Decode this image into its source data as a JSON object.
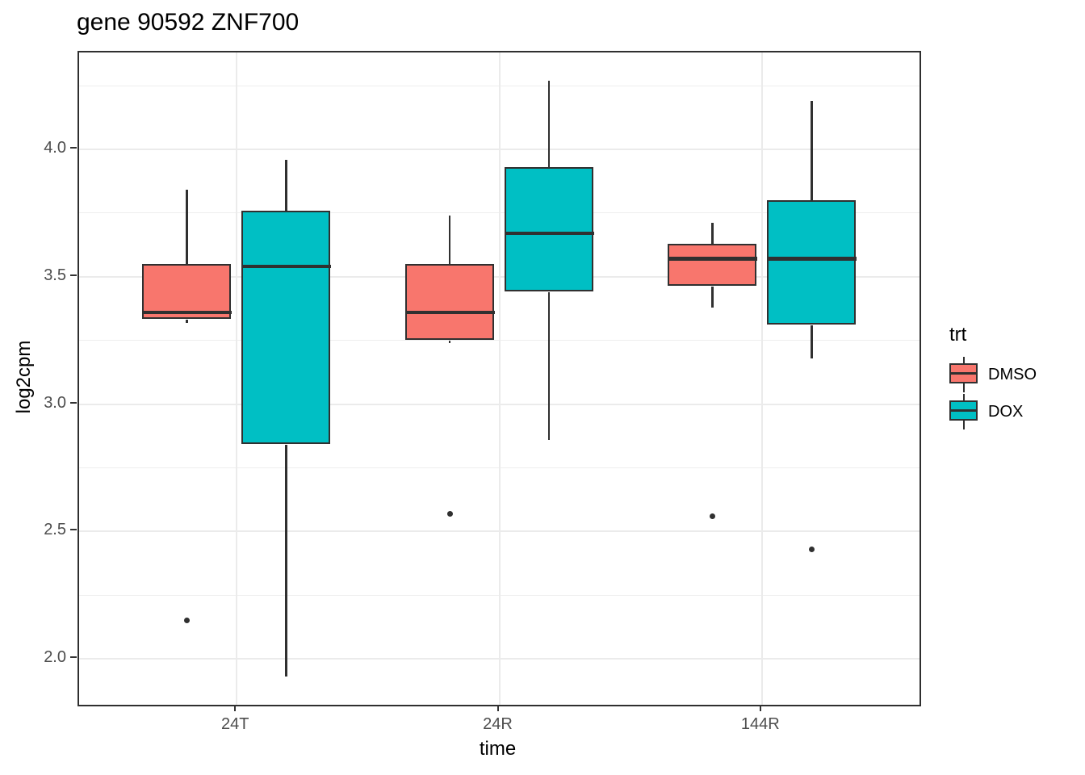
{
  "title": "gene 90592 ZNF700",
  "chart_data": {
    "type": "boxplot",
    "title": "gene 90592 ZNF700",
    "xlabel": "time",
    "ylabel": "log2cpm",
    "legend_title": "trt",
    "legend_position": "right",
    "grid": true,
    "categories": [
      "24T",
      "24R",
      "144R"
    ],
    "y_axis": {
      "range": [
        1.82,
        4.38
      ],
      "tick_values": [
        4.0,
        3.5,
        3.0,
        2.5,
        2.0
      ],
      "tick_labels": [
        "4.0",
        "3.5",
        "3.0",
        "2.5",
        "2.0"
      ],
      "minor_tick_values": [
        4.25,
        3.75,
        3.25,
        2.75,
        2.25
      ]
    },
    "series": [
      {
        "name": "DMSO",
        "color": "#F8766D",
        "boxes": [
          {
            "category": "24T",
            "whisker_low": 3.32,
            "q1": 3.33,
            "median": 3.36,
            "q3": 3.55,
            "whisker_high": 3.84,
            "outliers": [
              2.15
            ]
          },
          {
            "category": "24R",
            "whisker_low": 3.24,
            "q1": 3.25,
            "median": 3.36,
            "q3": 3.55,
            "whisker_high": 3.74,
            "outliers": [
              2.57
            ]
          },
          {
            "category": "144R",
            "whisker_low": 3.38,
            "q1": 3.46,
            "median": 3.57,
            "q3": 3.63,
            "whisker_high": 3.71,
            "outliers": [
              2.56
            ]
          }
        ]
      },
      {
        "name": "DOX",
        "color": "#00BFC4",
        "boxes": [
          {
            "category": "24T",
            "whisker_low": 1.93,
            "q1": 2.84,
            "median": 3.54,
            "q3": 3.76,
            "whisker_high": 3.96,
            "outliers": []
          },
          {
            "category": "24R",
            "whisker_low": 2.86,
            "q1": 3.44,
            "median": 3.67,
            "q3": 3.93,
            "whisker_high": 4.27,
            "outliers": []
          },
          {
            "category": "144R",
            "whisker_low": 3.18,
            "q1": 3.31,
            "median": 3.57,
            "q3": 3.8,
            "whisker_high": 4.19,
            "outliers": [
              2.43
            ]
          }
        ]
      }
    ],
    "style": {
      "box_border_color": "#303030",
      "median_color": "#303030",
      "whisker_color": "#303030",
      "outlier_color": "#303030",
      "grid_major_color": "#ebebeb",
      "grid_minor_color": "#efefef",
      "panel_border_color": "#2f2f2f",
      "tick_label_color": "#4d4d4d",
      "panel_background": "#ffffff"
    }
  }
}
